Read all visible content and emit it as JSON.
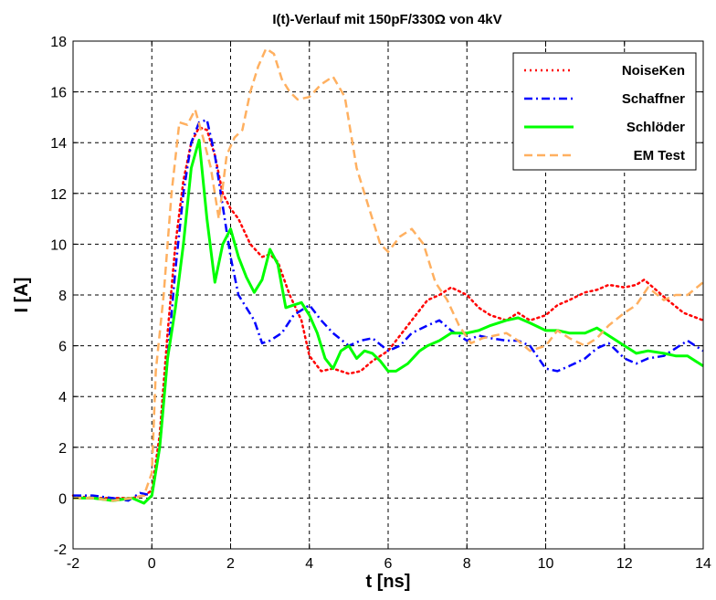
{
  "chart_data": {
    "type": "line",
    "title": "I(t)-Verlauf mit 150pF/330Ω von 4kV",
    "xlabel": "t [ns]",
    "ylabel": "I [A]",
    "xlim": [
      -2,
      14
    ],
    "ylim": [
      -2,
      18
    ],
    "xticks": [
      -2,
      0,
      2,
      4,
      6,
      8,
      10,
      12,
      14
    ],
    "yticks": [
      -2,
      0,
      2,
      4,
      6,
      8,
      10,
      12,
      14,
      16,
      18
    ],
    "grid": true,
    "legend_position": "top-right",
    "series": [
      {
        "name": "NoiseKen",
        "color": "#ff0000",
        "dash": "dotted",
        "x": [
          -2,
          -1.5,
          -1,
          -0.5,
          -0.2,
          0,
          0.2,
          0.4,
          0.6,
          0.8,
          1.0,
          1.2,
          1.4,
          1.6,
          1.8,
          2.0,
          2.2,
          2.5,
          2.8,
          3.0,
          3.2,
          3.5,
          3.8,
          4.0,
          4.3,
          4.6,
          5.0,
          5.3,
          5.6,
          6.0,
          6.3,
          6.6,
          7.0,
          7.3,
          7.6,
          8.0,
          8.3,
          8.6,
          9.0,
          9.3,
          9.6,
          10.0,
          10.3,
          10.6,
          11.0,
          11.3,
          11.6,
          12.0,
          12.3,
          12.5,
          12.8,
          13.1,
          13.5,
          14.0
        ],
        "y": [
          0.1,
          0.0,
          0.0,
          0.0,
          0.1,
          0.3,
          2.5,
          6.5,
          10.0,
          12.5,
          14.0,
          14.6,
          14.5,
          13.5,
          12.0,
          11.4,
          11.0,
          10.0,
          9.5,
          9.6,
          9.3,
          8.0,
          7.0,
          5.6,
          5.0,
          5.1,
          4.9,
          5.0,
          5.4,
          5.8,
          6.4,
          7.0,
          7.8,
          8.0,
          8.3,
          8.0,
          7.5,
          7.2,
          7.0,
          7.3,
          7.0,
          7.2,
          7.6,
          7.8,
          8.1,
          8.2,
          8.4,
          8.3,
          8.4,
          8.6,
          8.2,
          7.8,
          7.3,
          7.0
        ]
      },
      {
        "name": "Schaffner",
        "color": "#0000ff",
        "dash": "dashdot",
        "x": [
          -2,
          -1.5,
          -1,
          -0.6,
          -0.3,
          0,
          0.2,
          0.4,
          0.6,
          0.8,
          1.0,
          1.2,
          1.4,
          1.6,
          1.8,
          2.0,
          2.2,
          2.4,
          2.6,
          2.8,
          3.0,
          3.3,
          3.6,
          4.0,
          4.3,
          4.6,
          5.0,
          5.3,
          5.6,
          6.0,
          6.3,
          6.6,
          7.0,
          7.3,
          7.6,
          8.0,
          8.3,
          8.6,
          9.0,
          9.3,
          9.6,
          10.0,
          10.3,
          10.6,
          11.0,
          11.3,
          11.6,
          12.0,
          12.3,
          12.6,
          13.0,
          13.3,
          13.6,
          14.0
        ],
        "y": [
          0.1,
          0.1,
          0.0,
          -0.1,
          0.2,
          0.1,
          2.0,
          5.5,
          9.0,
          12.0,
          14.0,
          14.8,
          14.9,
          13.5,
          11.5,
          9.5,
          8.0,
          7.5,
          7.0,
          6.1,
          6.2,
          6.5,
          7.2,
          7.6,
          7.0,
          6.5,
          6.0,
          6.2,
          6.3,
          5.8,
          6.0,
          6.5,
          6.8,
          7.0,
          6.6,
          6.2,
          6.4,
          6.3,
          6.2,
          6.2,
          6.0,
          5.1,
          5.0,
          5.2,
          5.5,
          5.9,
          6.1,
          5.5,
          5.3,
          5.5,
          5.6,
          5.9,
          6.2,
          5.8
        ]
      },
      {
        "name": "Schlöder",
        "color": "#00ff00",
        "dash": "solid",
        "x": [
          -2,
          -1.5,
          -1,
          -0.5,
          -0.2,
          0,
          0.2,
          0.4,
          0.6,
          0.8,
          1.0,
          1.2,
          1.4,
          1.6,
          1.8,
          2.0,
          2.2,
          2.4,
          2.6,
          2.8,
          3.0,
          3.2,
          3.4,
          3.6,
          3.8,
          4.0,
          4.2,
          4.4,
          4.6,
          4.8,
          5.0,
          5.2,
          5.4,
          5.6,
          5.8,
          6.0,
          6.2,
          6.5,
          6.8,
          7.0,
          7.3,
          7.6,
          8.0,
          8.3,
          8.6,
          9.0,
          9.3,
          9.6,
          10.0,
          10.3,
          10.6,
          11.0,
          11.3,
          11.6,
          12.0,
          12.3,
          12.6,
          13.0,
          13.3,
          13.6,
          14.0
        ],
        "y": [
          0.0,
          0.0,
          -0.1,
          0.0,
          -0.2,
          0.1,
          2.0,
          5.5,
          7.5,
          10.0,
          13.0,
          14.1,
          11.0,
          8.5,
          10.0,
          10.6,
          9.5,
          8.7,
          8.1,
          8.6,
          9.8,
          9.2,
          7.5,
          7.6,
          7.7,
          7.2,
          6.5,
          5.5,
          5.1,
          5.8,
          6.0,
          5.5,
          5.8,
          5.7,
          5.4,
          5.0,
          5.0,
          5.3,
          5.8,
          6.0,
          6.2,
          6.5,
          6.5,
          6.6,
          6.8,
          7.0,
          7.1,
          6.9,
          6.6,
          6.6,
          6.5,
          6.5,
          6.7,
          6.4,
          6.0,
          5.7,
          5.8,
          5.7,
          5.6,
          5.6,
          5.2
        ]
      },
      {
        "name": "EM Test",
        "color": "#ffb060",
        "dash": "dashed",
        "x": [
          -2,
          -1.5,
          -1,
          -0.5,
          -0.2,
          0,
          0.1,
          0.3,
          0.5,
          0.7,
          0.9,
          1.1,
          1.3,
          1.5,
          1.7,
          1.9,
          2.1,
          2.3,
          2.5,
          2.7,
          2.9,
          3.1,
          3.3,
          3.5,
          3.7,
          4.0,
          4.3,
          4.6,
          4.9,
          5.2,
          5.5,
          5.8,
          6.0,
          6.3,
          6.6,
          6.9,
          7.2,
          7.5,
          7.8,
          8.1,
          8.4,
          8.7,
          9.0,
          9.3,
          9.6,
          10.0,
          10.3,
          10.6,
          11.0,
          11.3,
          11.6,
          12.0,
          12.3,
          12.6,
          13.0,
          13.3,
          13.6,
          14.0
        ],
        "y": [
          0.0,
          0.0,
          -0.1,
          0.0,
          0.1,
          1.0,
          5.0,
          8.0,
          12.0,
          14.8,
          14.7,
          15.3,
          14.2,
          13.0,
          11.0,
          13.5,
          14.2,
          14.5,
          16.0,
          17.0,
          17.7,
          17.5,
          16.5,
          16.0,
          15.7,
          15.8,
          16.3,
          16.6,
          15.8,
          13.0,
          11.5,
          10.0,
          9.7,
          10.3,
          10.6,
          10.0,
          8.5,
          7.8,
          6.8,
          6.1,
          6.3,
          6.4,
          6.5,
          6.2,
          5.8,
          6.0,
          6.6,
          6.3,
          6.0,
          6.3,
          6.8,
          7.3,
          7.6,
          8.3,
          7.8,
          8.0,
          8.0,
          8.5
        ]
      }
    ]
  }
}
